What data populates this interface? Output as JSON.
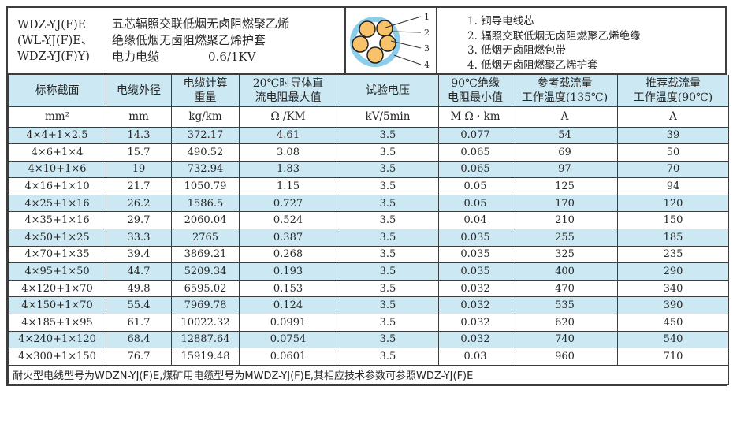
{
  "header": {
    "models": [
      "WDZ-YJ(F)E",
      "(WL-YJ(F)E、",
      "WDZ-YJ(F)Y)"
    ],
    "description_lines": [
      "五芯辐照交联低烟无卤阻燃聚乙烯",
      "绝缘低烟无卤阻燃聚乙烯护套"
    ],
    "product_type": "电力电缆",
    "voltage_rating": "0.6/1KV",
    "diagram": {
      "callouts": [
        "1",
        "2",
        "3",
        "4"
      ],
      "colors": {
        "sheath_ring": "#8ccdea",
        "core_fill": "#f8c26b",
        "core_outline": "#1f1f1f"
      },
      "legend": [
        "1. 铜导电线芯",
        "2. 辐照交联低烟无卤阻燃聚乙烯绝缘",
        "3. 低烟无卤阻燃包带",
        "4. 低烟无卤阻燃聚乙烯护套"
      ]
    }
  },
  "table": {
    "columns": [
      {
        "title": [
          "标称截面"
        ],
        "unit": "mm²"
      },
      {
        "title": [
          "电缆外径"
        ],
        "unit": "mm"
      },
      {
        "title": [
          "电缆计算",
          "重量"
        ],
        "unit": "kg/km"
      },
      {
        "title": [
          "20℃时导体直",
          "流电阻最大值"
        ],
        "unit": "Ω /KM"
      },
      {
        "title": [
          "试验电压"
        ],
        "unit": "kV/5min"
      },
      {
        "title": [
          "90℃绝缘",
          "电阻最小值"
        ],
        "unit": "M Ω · km"
      },
      {
        "title": [
          "参考载流量",
          "工作温度(135℃)"
        ],
        "unit": "A"
      },
      {
        "title": [
          "推荐载流量",
          "工作温度(90℃)"
        ],
        "unit": "A"
      }
    ],
    "rows": [
      [
        "4×4+1×2.5",
        "14.3",
        "372.17",
        "4.61",
        "3.5",
        "0.077",
        "54",
        "39"
      ],
      [
        "4×6+1×4",
        "15.7",
        "490.52",
        "3.08",
        "3.5",
        "0.065",
        "69",
        "50"
      ],
      [
        "4×10+1×6",
        "19",
        "732.94",
        "1.83",
        "3.5",
        "0.065",
        "97",
        "70"
      ],
      [
        "4×16+1×10",
        "21.7",
        "1050.79",
        "1.15",
        "3.5",
        "0.05",
        "125",
        "94"
      ],
      [
        "4×25+1×16",
        "26.2",
        "1586.5",
        "0.727",
        "3.5",
        "0.05",
        "170",
        "120"
      ],
      [
        "4×35+1×16",
        "29.7",
        "2060.04",
        "0.524",
        "3.5",
        "0.04",
        "210",
        "150"
      ],
      [
        "4×50+1×25",
        "33.3",
        "2765",
        "0.387",
        "3.5",
        "0.035",
        "255",
        "185"
      ],
      [
        "4×70+1×35",
        "39.4",
        "3869.21",
        "0.268",
        "3.5",
        "0.035",
        "325",
        "235"
      ],
      [
        "4×95+1×50",
        "44.7",
        "5209.34",
        "0.193",
        "3.5",
        "0.035",
        "400",
        "290"
      ],
      [
        "4×120+1×70",
        "49.8",
        "6595.02",
        "0.153",
        "3.5",
        "0.032",
        "470",
        "340"
      ],
      [
        "4×150+1×70",
        "55.4",
        "7969.78",
        "0.124",
        "3.5",
        "0.032",
        "535",
        "390"
      ],
      [
        "4×185+1×95",
        "61.7",
        "10022.32",
        "0.0991",
        "3.5",
        "0.032",
        "620",
        "450"
      ],
      [
        "4×240+1×120",
        "68.4",
        "12887.64",
        "0.0754",
        "3.5",
        "0.032",
        "740",
        "540"
      ],
      [
        "4×300+1×150",
        "76.7",
        "15919.48",
        "0.0601",
        "3.5",
        "0.03",
        "960",
        "710"
      ]
    ],
    "footnote": "耐火型电线型号为WDZN-YJ(F)E,煤矿用电缆型号为MWDZ-YJ(F)E,其相应技术参数可参照WDZ-YJ(F)E"
  }
}
